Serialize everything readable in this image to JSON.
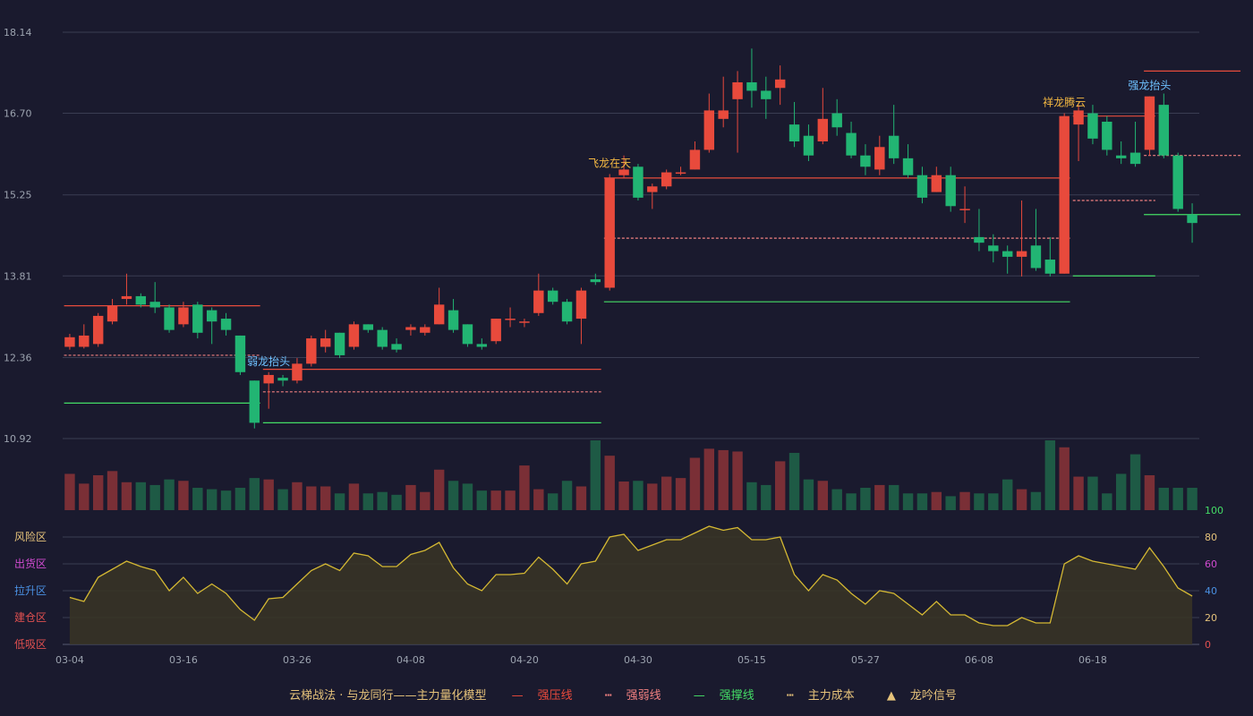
{
  "chart_data": {
    "type": "candlestick",
    "title": "",
    "x_ticks": [
      "03-04",
      "03-16",
      "03-26",
      "04-08",
      "04-20",
      "04-30",
      "05-15",
      "05-27",
      "06-08",
      "06-18"
    ],
    "x_tick_index": [
      0,
      8,
      16,
      24,
      32,
      40,
      48,
      56,
      64,
      72
    ],
    "price_axis": {
      "ylim": [
        10.92,
        18.14
      ],
      "ticks": [
        "18.14",
        "16.70",
        "15.25",
        "13.81",
        "12.36",
        "10.92"
      ]
    },
    "candles": [
      [
        12.55,
        12.72,
        12.5,
        12.78
      ],
      [
        12.55,
        12.75,
        12.52,
        12.95
      ],
      [
        12.6,
        13.1,
        12.55,
        13.15
      ],
      [
        13.0,
        13.28,
        12.95,
        13.4
      ],
      [
        13.4,
        13.45,
        13.3,
        13.85
      ],
      [
        13.45,
        13.3,
        13.25,
        13.5
      ],
      [
        13.35,
        13.25,
        13.15,
        13.7
      ],
      [
        13.25,
        12.85,
        12.8,
        13.3
      ],
      [
        12.95,
        13.25,
        12.9,
        13.35
      ],
      [
        13.3,
        12.8,
        12.7,
        13.35
      ],
      [
        13.2,
        13.0,
        12.6,
        13.25
      ],
      [
        13.05,
        12.85,
        12.75,
        13.15
      ],
      [
        12.75,
        12.1,
        12.05,
        12.75
      ],
      [
        11.95,
        11.2,
        11.1,
        11.95
      ],
      [
        11.9,
        12.05,
        11.45,
        12.1
      ],
      [
        12.0,
        11.95,
        11.85,
        12.05
      ],
      [
        11.95,
        12.25,
        11.9,
        12.35
      ],
      [
        12.25,
        12.7,
        12.2,
        12.75
      ],
      [
        12.55,
        12.7,
        12.45,
        12.85
      ],
      [
        12.8,
        12.4,
        12.35,
        12.8
      ],
      [
        12.55,
        12.95,
        12.5,
        13.0
      ],
      [
        12.95,
        12.85,
        12.8,
        12.95
      ],
      [
        12.85,
        12.55,
        12.5,
        12.9
      ],
      [
        12.6,
        12.5,
        12.45,
        12.7
      ],
      [
        12.85,
        12.9,
        12.75,
        12.95
      ],
      [
        12.8,
        12.9,
        12.75,
        12.95
      ],
      [
        12.95,
        13.3,
        12.95,
        13.6
      ],
      [
        13.2,
        12.85,
        12.8,
        13.4
      ],
      [
        12.95,
        12.6,
        12.55,
        12.95
      ],
      [
        12.6,
        12.55,
        12.5,
        12.7
      ],
      [
        12.65,
        13.05,
        12.6,
        13.05
      ],
      [
        13.05,
        13.05,
        12.9,
        13.25
      ],
      [
        13.0,
        13.0,
        12.9,
        13.05
      ],
      [
        13.15,
        13.55,
        13.1,
        13.85
      ],
      [
        13.55,
        13.35,
        13.3,
        13.6
      ],
      [
        13.35,
        13.0,
        12.95,
        13.4
      ],
      [
        13.05,
        13.55,
        12.6,
        13.6
      ],
      [
        13.75,
        13.7,
        13.65,
        13.85
      ],
      [
        13.6,
        15.55,
        13.55,
        15.62
      ],
      [
        15.6,
        15.7,
        15.55,
        15.95
      ],
      [
        15.75,
        15.2,
        15.15,
        15.8
      ],
      [
        15.3,
        15.4,
        15.0,
        15.45
      ],
      [
        15.4,
        15.65,
        15.35,
        15.7
      ],
      [
        15.65,
        15.65,
        15.6,
        15.75
      ],
      [
        15.7,
        16.05,
        15.7,
        16.2
      ],
      [
        16.05,
        16.75,
        16.0,
        17.05
      ],
      [
        16.6,
        16.75,
        16.45,
        17.35
      ],
      [
        16.95,
        17.25,
        16.0,
        17.45
      ],
      [
        17.25,
        17.1,
        16.8,
        17.85
      ],
      [
        17.1,
        16.95,
        16.6,
        17.35
      ],
      [
        17.15,
        17.3,
        16.85,
        17.55
      ],
      [
        16.5,
        16.2,
        16.1,
        16.9
      ],
      [
        16.3,
        15.95,
        15.85,
        16.5
      ],
      [
        16.2,
        16.6,
        16.15,
        17.15
      ],
      [
        16.7,
        16.45,
        16.3,
        16.95
      ],
      [
        16.35,
        15.95,
        15.9,
        16.55
      ],
      [
        15.95,
        15.75,
        15.6,
        16.15
      ],
      [
        15.7,
        16.1,
        15.6,
        16.3
      ],
      [
        16.3,
        15.9,
        15.8,
        16.85
      ],
      [
        15.9,
        15.6,
        15.55,
        16.15
      ],
      [
        15.6,
        15.2,
        15.1,
        15.75
      ],
      [
        15.3,
        15.6,
        15.3,
        15.75
      ],
      [
        15.6,
        15.05,
        14.95,
        15.75
      ],
      [
        15.0,
        15.0,
        14.75,
        15.4
      ],
      [
        14.5,
        14.4,
        14.25,
        15.0
      ],
      [
        14.35,
        14.25,
        14.05,
        14.55
      ],
      [
        14.25,
        14.15,
        13.85,
        14.35
      ],
      [
        14.15,
        14.25,
        13.8,
        15.15
      ],
      [
        14.35,
        13.95,
        13.9,
        15.0
      ],
      [
        14.1,
        13.85,
        13.8,
        14.5
      ],
      [
        13.85,
        16.65,
        13.85,
        16.7
      ],
      [
        16.5,
        16.75,
        15.85,
        16.85
      ],
      [
        16.7,
        16.25,
        16.15,
        16.85
      ],
      [
        16.55,
        16.05,
        15.95,
        16.65
      ],
      [
        15.95,
        15.9,
        15.8,
        16.2
      ],
      [
        16.0,
        15.8,
        15.75,
        16.55
      ],
      [
        16.05,
        17.0,
        15.95,
        17.0
      ],
      [
        16.85,
        15.95,
        15.9,
        17.05
      ],
      [
        15.95,
        15.0,
        14.95,
        16.0
      ],
      [
        14.9,
        14.75,
        14.4,
        15.1
      ]
    ],
    "volume": [
      52,
      38,
      50,
      56,
      40,
      40,
      36,
      44,
      42,
      32,
      30,
      28,
      32,
      46,
      44,
      30,
      40,
      34,
      34,
      24,
      38,
      24,
      26,
      22,
      36,
      26,
      58,
      42,
      38,
      28,
      28,
      28,
      64,
      30,
      24,
      42,
      34,
      100,
      78,
      41,
      42,
      38,
      48,
      46,
      75,
      88,
      86,
      84,
      40,
      36,
      70,
      82,
      44,
      42,
      30,
      24,
      32,
      36,
      36,
      24,
      24,
      26,
      20,
      26,
      24,
      24,
      44,
      30,
      26,
      100,
      90,
      48,
      48,
      24,
      52,
      80,
      50,
      32,
      32,
      32
    ],
    "volume_colors_note": "up",
    "oscillator": {
      "ylim": [
        0,
        100
      ],
      "ticks": [
        "100",
        "80",
        "60",
        "40",
        "20",
        "0"
      ],
      "zones": [
        "风险区",
        "出货区",
        "拉升区",
        "建仓区",
        "低吸区"
      ],
      "values": [
        35,
        32,
        50,
        56,
        62,
        58,
        55,
        40,
        50,
        38,
        45,
        38,
        26,
        18,
        34,
        35,
        45,
        55,
        60,
        55,
        68,
        66,
        58,
        58,
        67,
        70,
        76,
        57,
        45,
        40,
        52,
        52,
        53,
        65,
        56,
        45,
        60,
        62,
        80,
        82,
        70,
        74,
        78,
        78,
        83,
        88,
        85,
        87,
        78,
        78,
        80,
        52,
        40,
        52,
        48,
        38,
        30,
        40,
        38,
        30,
        22,
        32,
        22,
        22,
        16,
        14,
        14,
        20,
        16,
        16,
        60,
        66,
        62,
        60,
        58,
        56,
        72,
        58,
        42,
        36
      ]
    },
    "lines": [
      {
        "type": "strong-pressure",
        "style": "solid",
        "color": "#e74c3c",
        "segments": [
          [
            0,
            13.28,
            13,
            13.28
          ],
          [
            14,
            12.15,
            37,
            12.15
          ],
          [
            38,
            15.55,
            70,
            15.55
          ],
          [
            71,
            16.65,
            76,
            16.65
          ],
          [
            76,
            17.45,
            82,
            17.45
          ]
        ]
      },
      {
        "type": "strong-weak",
        "style": "dashed",
        "color": "#f08080",
        "segments": [
          [
            0,
            12.4,
            13,
            12.4
          ],
          [
            14,
            11.75,
            37,
            11.75
          ],
          [
            38,
            14.48,
            70,
            14.48
          ],
          [
            71,
            15.15,
            76,
            15.15
          ],
          [
            76,
            15.95,
            82,
            15.95
          ]
        ]
      },
      {
        "type": "strong-support",
        "style": "solid",
        "color": "#44dd66",
        "segments": [
          [
            0,
            11.55,
            13,
            11.55
          ],
          [
            14,
            11.2,
            37,
            11.2
          ],
          [
            38,
            13.35,
            70,
            13.35
          ],
          [
            71,
            13.81,
            76,
            13.81
          ],
          [
            76,
            14.9,
            82,
            14.9
          ]
        ]
      }
    ],
    "signals": [
      {
        "index": 14,
        "text": "弱龙抬头",
        "color": "#6ec1ff"
      },
      {
        "index": 38,
        "text": "飞龙在天",
        "color": "#f5b942"
      },
      {
        "index": 70,
        "text": "祥龙腾云",
        "color": "#f5b942"
      },
      {
        "index": 76,
        "text": "强龙抬头",
        "color": "#6ec1ff"
      }
    ],
    "colors": {
      "up": "#e84a3c",
      "down": "#22b573",
      "up_vol": "#7a2f36",
      "down_vol": "#1e5a45",
      "osc_line": "#d4b833",
      "osc_fill": "#3a3524",
      "grid": "#3a3d52"
    }
  },
  "legend": {
    "model": "云梯战法 · 与龙同行——主力量化模型",
    "items": [
      {
        "sym": "—",
        "label": "强压线",
        "color": "#e84a3c"
      },
      {
        "sym": "┅",
        "label": "强弱线",
        "color": "#f08080"
      },
      {
        "sym": "—",
        "label": "强撑线",
        "color": "#44dd66"
      },
      {
        "sym": "┅",
        "label": "主力成本",
        "color": "#e5c27a"
      },
      {
        "sym": "▲",
        "label": "龙吟信号",
        "color": "#e5c27a"
      }
    ]
  }
}
